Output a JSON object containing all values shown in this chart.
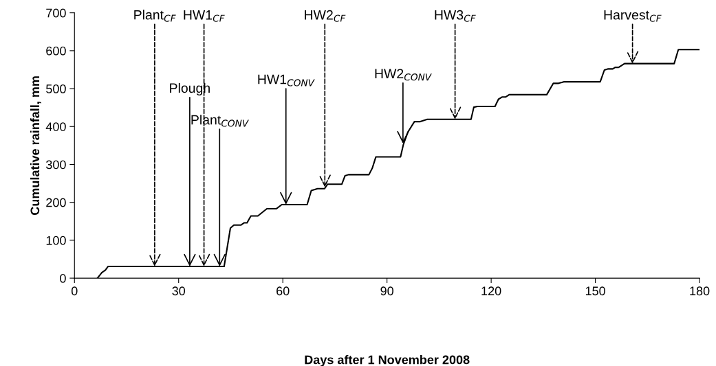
{
  "chart_data": {
    "type": "line",
    "xlabel": "Days after 1 November 2008",
    "ylabel": "Cumulative rainfall, mm",
    "x": [
      6.6,
      7.9,
      8.9,
      9.7,
      43.1,
      44.9,
      45.9,
      47.9,
      48.9,
      49.7,
      50.8,
      52.8,
      55.4,
      58.1,
      59.7,
      67.0,
      68.2,
      70.0,
      72.0,
      72.9,
      77.0,
      77.9,
      78.9,
      84.8,
      85.8,
      86.8,
      93.9,
      94.7,
      96.0,
      97.9,
      99.6,
      101.6,
      114.2,
      115.0,
      116.0,
      121.1,
      122.1,
      123.2,
      124.2,
      125.2,
      136.0,
      137.9,
      139.4,
      140.9,
      151.4,
      152.6,
      153.7,
      155.0,
      155.7,
      156.7,
      158.4,
      172.7,
      173.9,
      180.0
    ],
    "series": [
      {
        "color": "#000000",
        "values": [
          0,
          15,
          21,
          31,
          31,
          132,
          140,
          140,
          146,
          146,
          164,
          164,
          183,
          183,
          194,
          194,
          231,
          236,
          236,
          248,
          248,
          270,
          273,
          273,
          291,
          320,
          320,
          352,
          385,
          413,
          413,
          419,
          419,
          451,
          453,
          453,
          472,
          478,
          478,
          484,
          484,
          514,
          514,
          518,
          518,
          549,
          552,
          552,
          556,
          556,
          566,
          566,
          603,
          603
        ]
      }
    ],
    "xlim": [
      0,
      180
    ],
    "xticks": [
      0,
      30,
      60,
      90,
      120,
      150,
      180
    ],
    "ylim": [
      0,
      700
    ],
    "yticks": [
      0,
      100,
      200,
      300,
      400,
      500,
      600,
      700
    ],
    "grid": false,
    "legend": false,
    "marker": "none",
    "line_style": "solid",
    "annotations": [
      {
        "text": "Plant$_{CF}$",
        "x": 23.1,
        "y": 31
      },
      {
        "text": "Plough",
        "x": 33.2,
        "y": 31
      },
      {
        "text": "HW1$_{CF}$",
        "x": 37.3,
        "y": 31
      },
      {
        "text": "Plant$_{CONV}$",
        "x": 41.8,
        "y": 31
      },
      {
        "text": "HW1$_{CONV}$",
        "x": 60.9,
        "y": 194
      },
      {
        "text": "HW2$_{CF}$",
        "x": 72.1,
        "y": 240
      },
      {
        "text": "HW2$_{CONV}$",
        "x": 94.6,
        "y": 355
      },
      {
        "text": "HW3$_{CF}$",
        "x": 109.6,
        "y": 419
      },
      {
        "text": "Harvest$_{CF}$",
        "x": 160.7,
        "y": 566
      }
    ]
  }
}
